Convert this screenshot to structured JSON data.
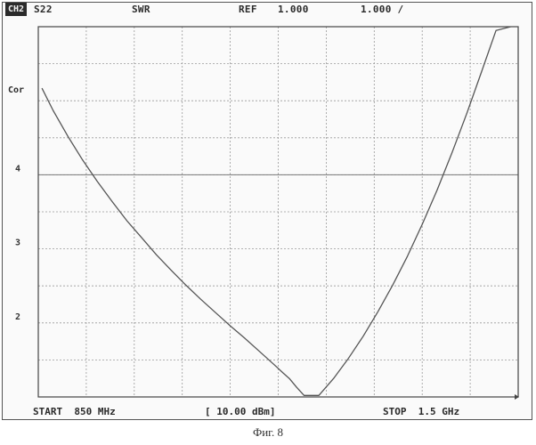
{
  "header": {
    "channel": "CH2",
    "param": "S22",
    "format": "SWR",
    "ref_label": "REF",
    "ref_value": "1.000",
    "scale": "1.000 /"
  },
  "footer": {
    "start": "START  850 MHz",
    "power": "[ 10.00 dBm]",
    "stop": "STOP  1.5 GHz"
  },
  "side": {
    "cor": "Cor"
  },
  "caption": "Фиг. 8",
  "colors": {
    "grid": "#9a9a9a",
    "trace": "#555555",
    "frame": "#444444"
  },
  "chart_data": {
    "type": "line",
    "title": "",
    "xlabel": "",
    "ylabel": "SWR",
    "xlim": [
      850,
      1500
    ],
    "ylim": [
      1,
      6
    ],
    "x_unit": "MHz",
    "yticks": [
      {
        "value": 2,
        "label": "2"
      },
      {
        "value": 3,
        "label": "3"
      },
      {
        "value": 4,
        "label": "4"
      }
    ],
    "grid": {
      "x_divisions": 10,
      "y_divisions": 10
    },
    "series": [
      {
        "x": [
          855,
          870,
          890,
          910,
          930,
          950,
          970,
          990,
          1010,
          1030,
          1050,
          1070,
          1090,
          1110,
          1130,
          1150,
          1170,
          1182,
          1190,
          1200,
          1210,
          1230,
          1250,
          1270,
          1290,
          1310,
          1330,
          1350,
          1370,
          1390,
          1410,
          1430,
          1450,
          1470,
          1490
        ],
        "y": [
          5.17,
          4.87,
          4.52,
          4.2,
          3.91,
          3.64,
          3.38,
          3.15,
          2.92,
          2.71,
          2.51,
          2.32,
          2.14,
          1.96,
          1.79,
          1.61,
          1.43,
          1.32,
          1.25,
          1.13,
          1.02,
          1.02,
          1.25,
          1.52,
          1.82,
          2.15,
          2.51,
          2.9,
          3.33,
          3.79,
          4.29,
          4.82,
          5.38,
          5.95,
          6.0
        ]
      }
    ]
  }
}
